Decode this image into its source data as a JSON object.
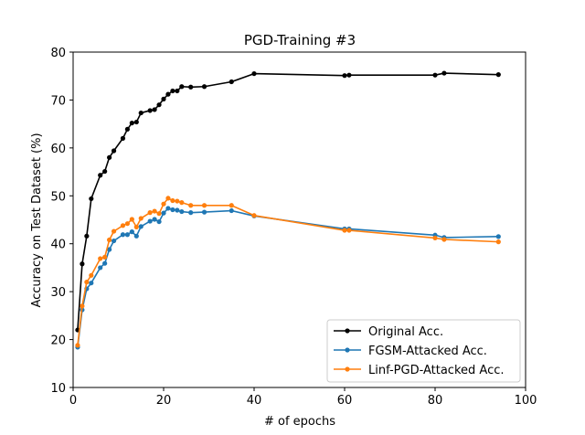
{
  "chart_data": {
    "type": "line",
    "title": "PGD-Training #3",
    "xlabel": "# of epochs",
    "ylabel": "Accuracy on Test Dataset (%)",
    "xlim": [
      0,
      100
    ],
    "ylim": [
      10,
      80
    ],
    "xticks": [
      0,
      20,
      40,
      60,
      80,
      100
    ],
    "yticks": [
      10,
      20,
      30,
      40,
      50,
      60,
      70,
      80
    ],
    "grid": false,
    "legend_position": "bottom-right",
    "series": [
      {
        "name": "Original Acc.",
        "color": "#000000",
        "x": [
          1,
          2,
          3,
          4,
          6,
          7,
          8,
          9,
          11,
          12,
          13,
          14,
          15,
          17,
          18,
          19,
          20,
          21,
          22,
          23,
          24,
          26,
          29,
          35,
          40,
          60,
          61,
          80,
          82,
          94
        ],
        "y": [
          22.0,
          35.8,
          41.6,
          49.4,
          54.3,
          55.1,
          58.0,
          59.4,
          62.0,
          63.9,
          65.2,
          65.4,
          67.3,
          67.8,
          68.0,
          69.0,
          70.2,
          71.2,
          71.9,
          71.9,
          72.8,
          72.7,
          72.8,
          73.8,
          75.5,
          75.1,
          75.2,
          75.2,
          75.6,
          75.3
        ]
      },
      {
        "name": "FGSM-Attacked Acc.",
        "color": "#1f77b4",
        "x": [
          1,
          2,
          3,
          4,
          6,
          7,
          8,
          9,
          11,
          12,
          13,
          14,
          15,
          17,
          18,
          19,
          20,
          21,
          22,
          23,
          24,
          26,
          29,
          35,
          40,
          60,
          61,
          80,
          82,
          94
        ],
        "y": [
          18.4,
          26.2,
          30.6,
          31.8,
          35.0,
          35.9,
          38.8,
          40.6,
          41.9,
          41.9,
          42.5,
          41.6,
          43.6,
          44.7,
          45.1,
          44.6,
          46.4,
          47.4,
          47.1,
          47.0,
          46.7,
          46.5,
          46.6,
          46.9,
          45.8,
          43.1,
          43.1,
          41.8,
          41.3,
          41.5
        ]
      },
      {
        "name": "Linf-PGD-Attacked Acc.",
        "color": "#ff7f0e",
        "x": [
          1,
          2,
          3,
          4,
          6,
          7,
          8,
          9,
          11,
          12,
          13,
          14,
          15,
          17,
          18,
          19,
          20,
          21,
          22,
          23,
          24,
          26,
          29,
          35,
          40,
          60,
          61,
          80,
          82,
          94
        ],
        "y": [
          18.8,
          27.0,
          32.0,
          33.4,
          36.9,
          37.2,
          40.8,
          42.6,
          43.8,
          44.2,
          45.1,
          43.5,
          45.3,
          46.5,
          46.8,
          46.3,
          48.3,
          49.5,
          49.0,
          48.9,
          48.6,
          48.0,
          48.0,
          48.0,
          45.9,
          42.8,
          42.8,
          41.2,
          40.9,
          40.4
        ]
      }
    ]
  }
}
